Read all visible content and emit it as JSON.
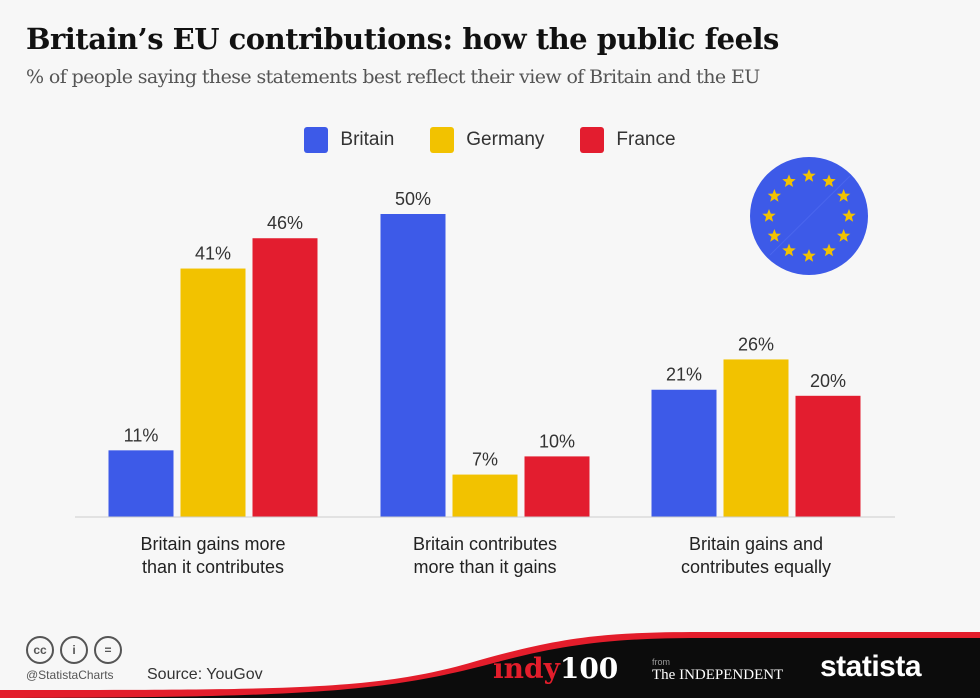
{
  "header": {
    "title": "Britain’s EU contributions: how the public feels",
    "subtitle": "% of people saying these statements best reflect their view of Britain and the EU"
  },
  "chart_data": {
    "type": "bar",
    "title": "Britain’s EU contributions: how the public feels",
    "subtitle": "% of people saying these statements best reflect their view of Britain and the EU",
    "categories": [
      [
        "Britain gains more",
        "than it contributes"
      ],
      [
        "Britain contributes",
        "more than it gains"
      ],
      [
        "Britain gains and",
        "contributes equally"
      ]
    ],
    "series": [
      {
        "name": "Britain",
        "color": "#3d5ae8",
        "values": [
          11,
          50,
          21
        ]
      },
      {
        "name": "Germany",
        "color": "#f2c200",
        "values": [
          41,
          7,
          26
        ]
      },
      {
        "name": "France",
        "color": "#e31d2f",
        "values": [
          46,
          10,
          20
        ]
      }
    ],
    "unit": "%",
    "ylim": [
      0,
      50
    ],
    "grid": false,
    "legend": "top-center",
    "xlabel": "",
    "ylabel": ""
  },
  "footer": {
    "handle": "@StatistaCharts",
    "source": "Source: YouGov",
    "indy_a": "indy",
    "indy_b": "100",
    "from": "from",
    "independent": "The INDEPENDENT",
    "statista": "statista",
    "cc": [
      "cc",
      "i",
      "="
    ]
  }
}
